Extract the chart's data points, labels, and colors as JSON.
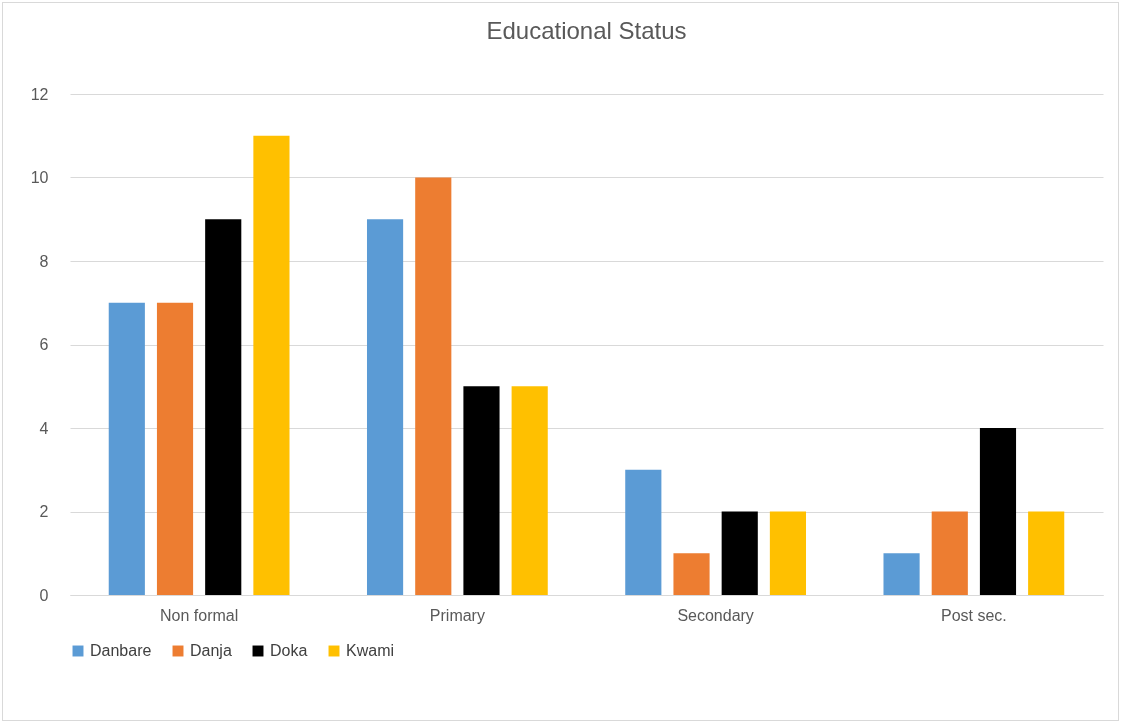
{
  "chart_data": {
    "type": "bar",
    "title": "Educational Status",
    "categories": [
      "Non formal",
      "Primary",
      "Secondary",
      "Post sec."
    ],
    "series": [
      {
        "name": "Danbare",
        "color": "#5b9bd5",
        "values": [
          7,
          9,
          3,
          1
        ]
      },
      {
        "name": "Danja",
        "color": "#ed7d31",
        "values": [
          7,
          10,
          1,
          2
        ]
      },
      {
        "name": "Doka",
        "color": "#000000",
        "values": [
          9,
          5,
          2,
          4
        ]
      },
      {
        "name": "Kwami",
        "color": "#ffc000",
        "values": [
          11,
          5,
          2,
          2
        ]
      }
    ],
    "ylim": [
      0,
      12
    ],
    "yticks": [
      0,
      2,
      4,
      6,
      8,
      10,
      12
    ],
    "grid": "y",
    "legend": "bottom"
  }
}
